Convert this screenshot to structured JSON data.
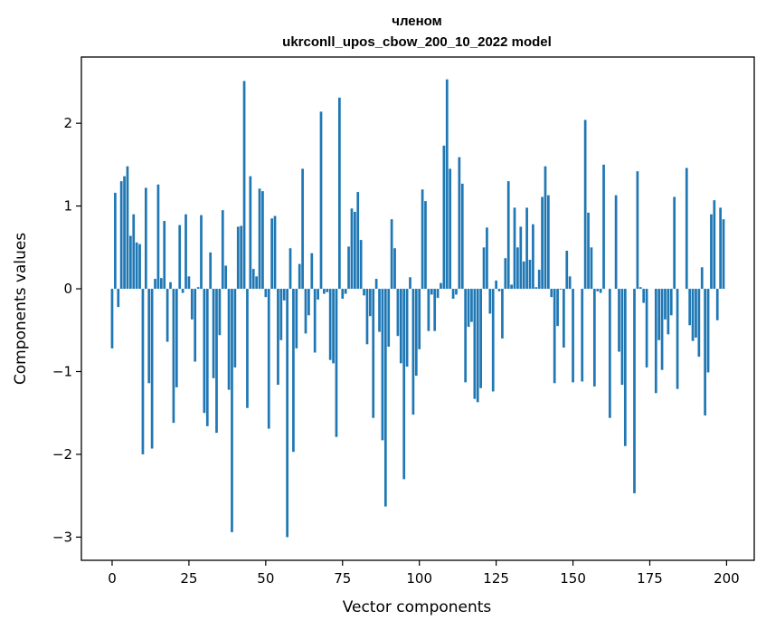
{
  "chart_data": {
    "type": "bar",
    "title_line1": "членом",
    "title_line2": "ukrconll_upos_cbow_200_10_2022 model",
    "xlabel": "Vector components",
    "ylabel": "Components values",
    "xlim": [
      -10,
      209
    ],
    "ylim": [
      -3.28,
      2.8
    ],
    "xticks": [
      0,
      25,
      50,
      75,
      100,
      125,
      150,
      175,
      200
    ],
    "xtick_labels": [
      "0",
      "25",
      "50",
      "75",
      "100",
      "125",
      "150",
      "175",
      "200"
    ],
    "yticks": [
      -3,
      -2,
      -1,
      0,
      1,
      2
    ],
    "ytick_labels": [
      "−3",
      "−2",
      "−1",
      "0",
      "1",
      "2"
    ],
    "grid": false,
    "bar_color": "#1f77b4",
    "values": [
      -0.72,
      1.16,
      -0.22,
      1.3,
      1.36,
      1.48,
      0.64,
      0.9,
      0.56,
      0.54,
      -2.0,
      1.22,
      -1.14,
      -1.93,
      0.12,
      1.26,
      0.13,
      0.82,
      -0.64,
      0.08,
      -1.62,
      -1.19,
      0.77,
      -0.05,
      0.9,
      0.15,
      -0.37,
      -0.88,
      0.02,
      0.89,
      -1.5,
      -1.66,
      0.44,
      -1.08,
      -1.74,
      -0.56,
      0.95,
      0.28,
      -1.22,
      -2.94,
      -0.95,
      0.75,
      0.76,
      2.51,
      -1.44,
      1.36,
      0.24,
      0.15,
      1.21,
      1.18,
      -0.1,
      -1.69,
      0.85,
      0.88,
      -1.16,
      -0.62,
      -0.14,
      -3.0,
      0.49,
      -1.97,
      -0.72,
      0.3,
      1.45,
      -0.54,
      -0.32,
      0.43,
      -0.77,
      -0.13,
      2.14,
      -0.06,
      -0.04,
      -0.86,
      -0.9,
      -1.79,
      2.31,
      -0.12,
      -0.06,
      0.51,
      0.97,
      0.93,
      1.17,
      0.59,
      -0.08,
      -0.67,
      -0.33,
      -1.56,
      0.12,
      -0.52,
      -1.83,
      -2.63,
      -0.7,
      0.84,
      0.49,
      -0.57,
      -0.9,
      -2.3,
      -0.94,
      0.14,
      -1.52,
      -1.05,
      -0.73,
      1.2,
      1.06,
      -0.51,
      -0.07,
      -0.51,
      -0.11,
      0.07,
      1.73,
      2.53,
      1.45,
      -0.12,
      -0.07,
      1.59,
      1.27,
      -1.13,
      -0.46,
      -0.4,
      -1.33,
      -1.37,
      -1.2,
      0.5,
      0.74,
      -0.3,
      -1.24,
      0.1,
      -0.03,
      -0.6,
      0.37,
      1.3,
      0.05,
      0.98,
      0.5,
      0.75,
      0.33,
      0.98,
      0.35,
      0.78,
      0.02,
      0.23,
      1.11,
      1.48,
      1.13,
      -0.1,
      -1.14,
      -0.45,
      -0.01,
      -0.71,
      0.46,
      0.15,
      -1.13,
      0.0,
      0.0,
      -1.12,
      2.04,
      0.92,
      0.5,
      -1.18,
      -0.03,
      -0.05,
      1.5,
      0.0,
      -1.56,
      0.0,
      1.13,
      -0.76,
      -1.16,
      -1.9,
      0.0,
      0.0,
      -2.47,
      1.42,
      0.02,
      -0.17,
      -0.95,
      0.0,
      0.0,
      -1.26,
      -0.62,
      -0.98,
      -0.37,
      -0.55,
      -0.32,
      1.11,
      -1.21,
      0.0,
      0.0,
      1.46,
      -0.44,
      -0.63,
      -0.59,
      -0.82,
      0.26,
      -1.53,
      -1.01,
      0.9,
      1.07,
      -0.38,
      0.98,
      0.84
    ]
  }
}
